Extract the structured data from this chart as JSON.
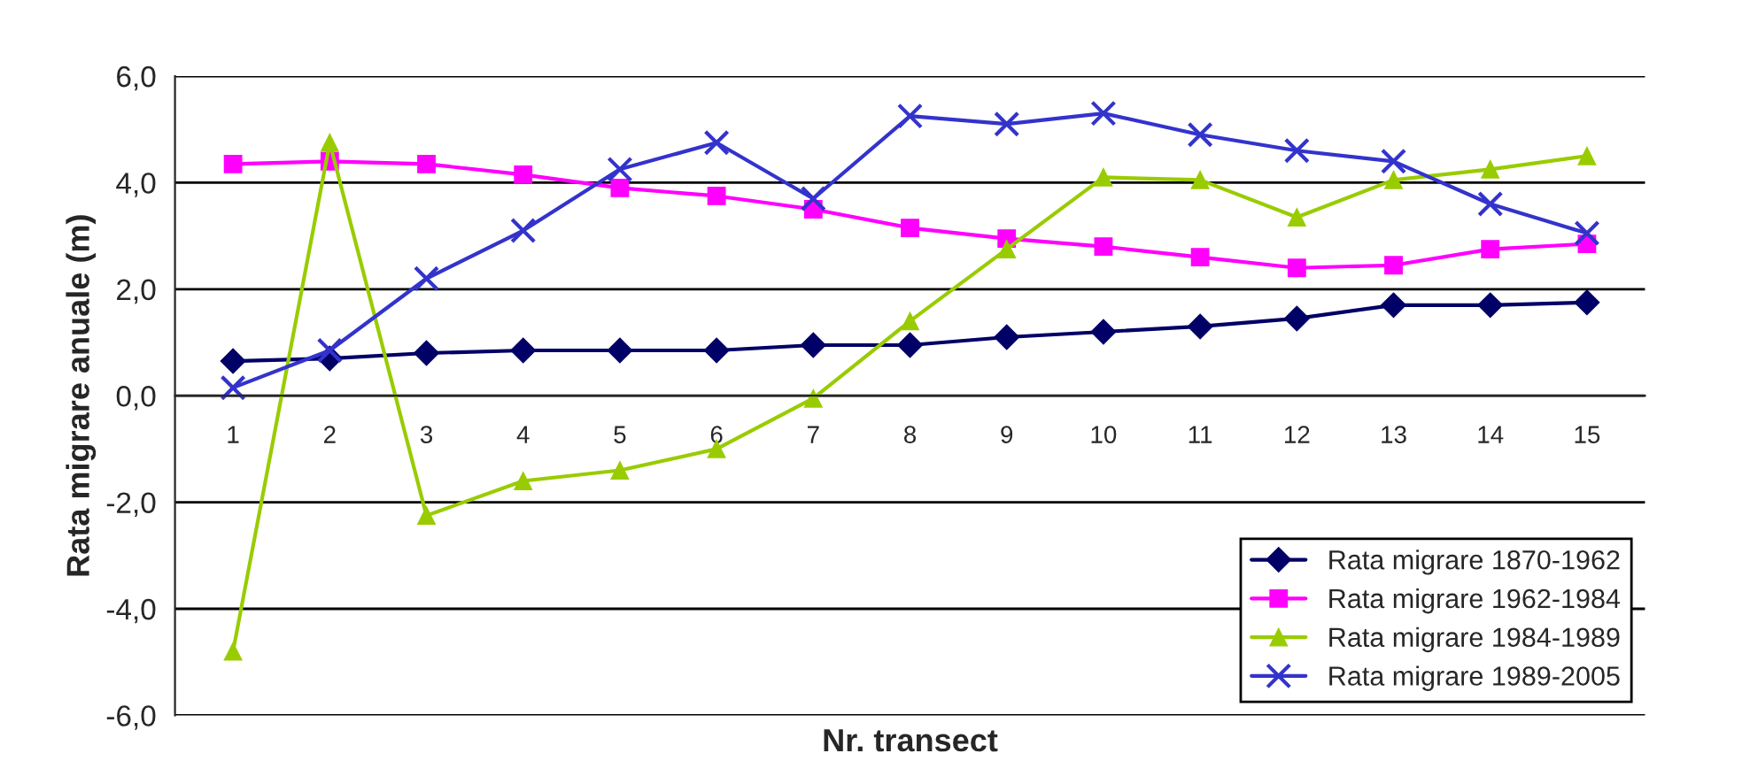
{
  "chart_data": {
    "type": "line",
    "ylabel": "Rata migrare anuale (m)",
    "xlabel": "Nr. transect",
    "categories": [
      "1",
      "2",
      "3",
      "4",
      "5",
      "6",
      "7",
      "8",
      "9",
      "10",
      "11",
      "12",
      "13",
      "14",
      "15"
    ],
    "series": [
      {
        "name": "Rata migrare 1870-1962",
        "color": "#000066",
        "marker": "diamond",
        "values": [
          0.65,
          0.7,
          0.8,
          0.85,
          0.85,
          0.85,
          0.95,
          0.95,
          1.1,
          1.2,
          1.3,
          1.45,
          1.7,
          1.7,
          1.75
        ]
      },
      {
        "name": "Rata migrare 1962-1984",
        "color": "#ff00ff",
        "marker": "square",
        "values": [
          4.35,
          4.4,
          4.35,
          4.15,
          3.9,
          3.75,
          3.5,
          3.15,
          2.95,
          2.8,
          2.6,
          2.4,
          2.45,
          2.75,
          2.85
        ]
      },
      {
        "name": "Rata migrare 1984-1989",
        "color": "#99cc00",
        "marker": "triangle",
        "values": [
          -4.8,
          4.75,
          -2.25,
          -1.6,
          -1.4,
          -1.0,
          -0.05,
          1.4,
          2.75,
          4.1,
          4.05,
          3.35,
          4.05,
          4.25,
          4.5
        ]
      },
      {
        "name": "Rata migrare 1989-2005",
        "color": "#3333cc",
        "marker": "cross",
        "values": [
          0.15,
          0.85,
          2.2,
          3.1,
          4.25,
          4.75,
          3.7,
          5.25,
          5.1,
          5.3,
          4.9,
          4.6,
          4.4,
          3.6,
          3.05
        ]
      }
    ],
    "ylim": [
      -6,
      6
    ],
    "yticks": [
      {
        "value": -6,
        "label": "-6,0"
      },
      {
        "value": -4,
        "label": "-4,0"
      },
      {
        "value": -2,
        "label": "-2,0"
      },
      {
        "value": 0,
        "label": "0,0"
      },
      {
        "value": 2,
        "label": "2,0"
      },
      {
        "value": 4,
        "label": "4,0"
      },
      {
        "value": 6,
        "label": "6,0"
      }
    ],
    "grid": "y",
    "legend": "bottom right",
    "line_style": "solid"
  }
}
